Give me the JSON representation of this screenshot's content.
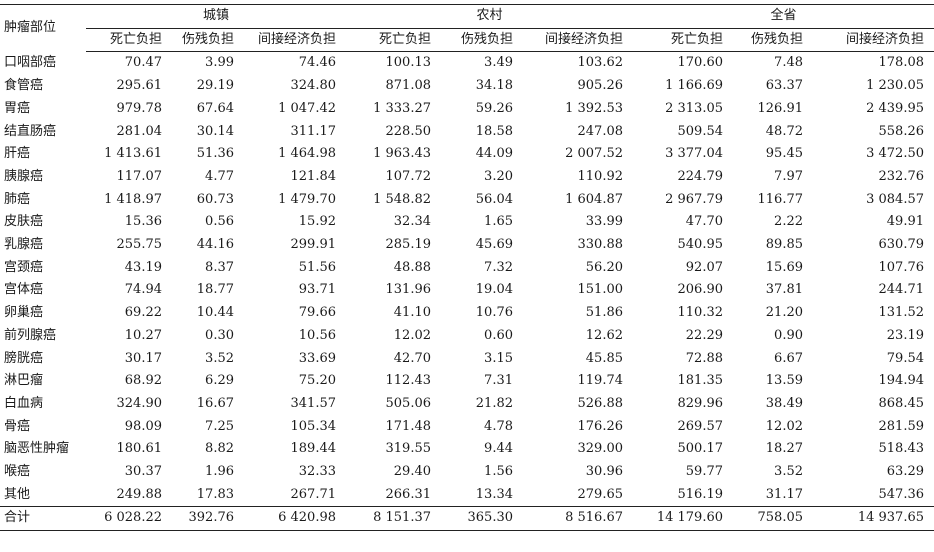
{
  "table": {
    "row_header": "肿瘤部位",
    "groups": [
      "城镇",
      "农村",
      "全省"
    ],
    "subheaders": [
      "死亡负担",
      "伤残负担",
      "间接经济负担"
    ],
    "rows": [
      {
        "site": "口咽部癌",
        "values": [
          "70.47",
          "3.99",
          "74.46",
          "100.13",
          "3.49",
          "103.62",
          "170.60",
          "7.48",
          "178.08"
        ]
      },
      {
        "site": "食管癌",
        "values": [
          "295.61",
          "29.19",
          "324.80",
          "871.08",
          "34.18",
          "905.26",
          "1 166.69",
          "63.37",
          "1 230.05"
        ]
      },
      {
        "site": "胃癌",
        "values": [
          "979.78",
          "67.64",
          "1 047.42",
          "1 333.27",
          "59.26",
          "1 392.53",
          "2 313.05",
          "126.91",
          "2 439.95"
        ]
      },
      {
        "site": "结直肠癌",
        "values": [
          "281.04",
          "30.14",
          "311.17",
          "228.50",
          "18.58",
          "247.08",
          "509.54",
          "48.72",
          "558.26"
        ]
      },
      {
        "site": "肝癌",
        "values": [
          "1 413.61",
          "51.36",
          "1 464.98",
          "1 963.43",
          "44.09",
          "2 007.52",
          "3 377.04",
          "95.45",
          "3 472.50"
        ]
      },
      {
        "site": "胰腺癌",
        "values": [
          "117.07",
          "4.77",
          "121.84",
          "107.72",
          "3.20",
          "110.92",
          "224.79",
          "7.97",
          "232.76"
        ]
      },
      {
        "site": "肺癌",
        "values": [
          "1 418.97",
          "60.73",
          "1 479.70",
          "1 548.82",
          "56.04",
          "1 604.87",
          "2 967.79",
          "116.77",
          "3 084.57"
        ]
      },
      {
        "site": "皮肤癌",
        "values": [
          "15.36",
          "0.56",
          "15.92",
          "32.34",
          "1.65",
          "33.99",
          "47.70",
          "2.22",
          "49.91"
        ]
      },
      {
        "site": "乳腺癌",
        "values": [
          "255.75",
          "44.16",
          "299.91",
          "285.19",
          "45.69",
          "330.88",
          "540.95",
          "89.85",
          "630.79"
        ]
      },
      {
        "site": "宫颈癌",
        "values": [
          "43.19",
          "8.37",
          "51.56",
          "48.88",
          "7.32",
          "56.20",
          "92.07",
          "15.69",
          "107.76"
        ]
      },
      {
        "site": "宫体癌",
        "values": [
          "74.94",
          "18.77",
          "93.71",
          "131.96",
          "19.04",
          "151.00",
          "206.90",
          "37.81",
          "244.71"
        ]
      },
      {
        "site": "卵巢癌",
        "values": [
          "69.22",
          "10.44",
          "79.66",
          "41.10",
          "10.76",
          "51.86",
          "110.32",
          "21.20",
          "131.52"
        ]
      },
      {
        "site": "前列腺癌",
        "values": [
          "10.27",
          "0.30",
          "10.56",
          "12.02",
          "0.60",
          "12.62",
          "22.29",
          "0.90",
          "23.19"
        ]
      },
      {
        "site": "膀胱癌",
        "values": [
          "30.17",
          "3.52",
          "33.69",
          "42.70",
          "3.15",
          "45.85",
          "72.88",
          "6.67",
          "79.54"
        ]
      },
      {
        "site": "淋巴瘤",
        "values": [
          "68.92",
          "6.29",
          "75.20",
          "112.43",
          "7.31",
          "119.74",
          "181.35",
          "13.59",
          "194.94"
        ]
      },
      {
        "site": "白血病",
        "values": [
          "324.90",
          "16.67",
          "341.57",
          "505.06",
          "21.82",
          "526.88",
          "829.96",
          "38.49",
          "868.45"
        ]
      },
      {
        "site": "骨癌",
        "values": [
          "98.09",
          "7.25",
          "105.34",
          "171.48",
          "4.78",
          "176.26",
          "269.57",
          "12.02",
          "281.59"
        ]
      },
      {
        "site": "脑恶性肿瘤",
        "values": [
          "180.61",
          "8.82",
          "189.44",
          "319.55",
          "9.44",
          "329.00",
          "500.17",
          "18.27",
          "518.43"
        ]
      },
      {
        "site": "喉癌",
        "values": [
          "30.37",
          "1.96",
          "32.33",
          "29.40",
          "1.56",
          "30.96",
          "59.77",
          "3.52",
          "63.29"
        ]
      },
      {
        "site": "其他",
        "values": [
          "249.88",
          "17.83",
          "267.71",
          "266.31",
          "13.34",
          "279.65",
          "516.19",
          "31.17",
          "547.36"
        ]
      }
    ],
    "total": {
      "site": "合计",
      "values": [
        "6 028.22",
        "392.76",
        "6 420.98",
        "8 151.37",
        "365.30",
        "8 516.67",
        "14 179.60",
        "758.05",
        "14 937.65"
      ]
    }
  }
}
